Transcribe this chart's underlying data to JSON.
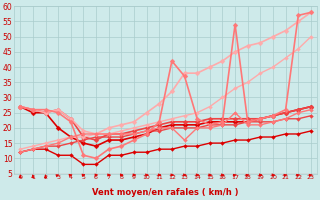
{
  "xlabel": "Vent moyen/en rafales ( km/h )",
  "background_color": "#ceeaea",
  "grid_color": "#aacccc",
  "x": [
    0,
    1,
    2,
    3,
    4,
    5,
    6,
    7,
    8,
    9,
    10,
    11,
    12,
    13,
    14,
    15,
    16,
    17,
    18,
    19,
    20,
    21,
    22,
    23
  ],
  "ylim": [
    5,
    60
  ],
  "yticks": [
    5,
    10,
    15,
    20,
    25,
    30,
    35,
    40,
    45,
    50,
    55,
    60
  ],
  "series": [
    {
      "y": [
        12,
        13,
        13,
        11,
        11,
        8,
        8,
        11,
        11,
        12,
        12,
        13,
        13,
        14,
        14,
        15,
        15,
        16,
        16,
        17,
        17,
        18,
        18,
        19
      ],
      "color": "#dd0000",
      "lw": 1.0,
      "marker": "D",
      "ms": 2.0
    },
    {
      "y": [
        27,
        25,
        25,
        20,
        17,
        15,
        14,
        16,
        16,
        17,
        18,
        20,
        21,
        21,
        21,
        22,
        22,
        22,
        22,
        23,
        24,
        25,
        26,
        27
      ],
      "color": "#dd0000",
      "lw": 1.2,
      "marker": "D",
      "ms": 2.5
    },
    {
      "y": [
        12,
        13,
        14,
        14,
        15,
        16,
        17,
        17,
        17,
        18,
        19,
        19,
        20,
        20,
        20,
        21,
        21,
        21,
        22,
        22,
        22,
        23,
        23,
        24
      ],
      "color": "#ee4444",
      "lw": 1.0,
      "marker": "D",
      "ms": 2.0
    },
    {
      "y": [
        27,
        26,
        25,
        26,
        23,
        17,
        16,
        18,
        18,
        19,
        20,
        21,
        22,
        22,
        22,
        23,
        23,
        23,
        23,
        23,
        24,
        25,
        26,
        27
      ],
      "color": "#ee4444",
      "lw": 1.2,
      "marker": "D",
      "ms": 2.5
    },
    {
      "y": [
        13,
        14,
        15,
        16,
        17,
        17,
        18,
        18,
        19,
        20,
        21,
        22,
        23,
        24,
        25,
        27,
        30,
        33,
        35,
        38,
        40,
        43,
        46,
        50
      ],
      "color": "#ffaaaa",
      "lw": 1.0,
      "marker": "D",
      "ms": 2.0
    },
    {
      "y": [
        27,
        26,
        25,
        26,
        23,
        19,
        18,
        20,
        21,
        22,
        25,
        28,
        32,
        38,
        38,
        40,
        42,
        45,
        47,
        48,
        50,
        52,
        55,
        58
      ],
      "color": "#ffaaaa",
      "lw": 1.2,
      "marker": "D",
      "ms": 2.5
    },
    {
      "y": [
        12,
        13,
        14,
        15,
        17,
        18,
        18,
        18,
        18,
        18,
        19,
        20,
        20,
        16,
        20,
        20,
        21,
        25,
        21,
        21,
        22,
        23,
        25,
        26
      ],
      "color": "#ff7777",
      "lw": 1.0,
      "marker": "D",
      "ms": 2.0
    },
    {
      "y": [
        27,
        26,
        26,
        25,
        22,
        11,
        10,
        13,
        14,
        16,
        18,
        22,
        42,
        37,
        23,
        21,
        22,
        54,
        22,
        23,
        24,
        26,
        57,
        58
      ],
      "color": "#ff7777",
      "lw": 1.2,
      "marker": "D",
      "ms": 2.5
    }
  ],
  "arrow_angles": [
    0,
    0,
    0,
    30,
    45,
    60,
    75,
    90,
    90,
    90,
    90,
    90,
    90,
    90,
    90,
    90,
    90,
    45,
    45,
    90,
    90,
    45,
    45,
    45
  ]
}
